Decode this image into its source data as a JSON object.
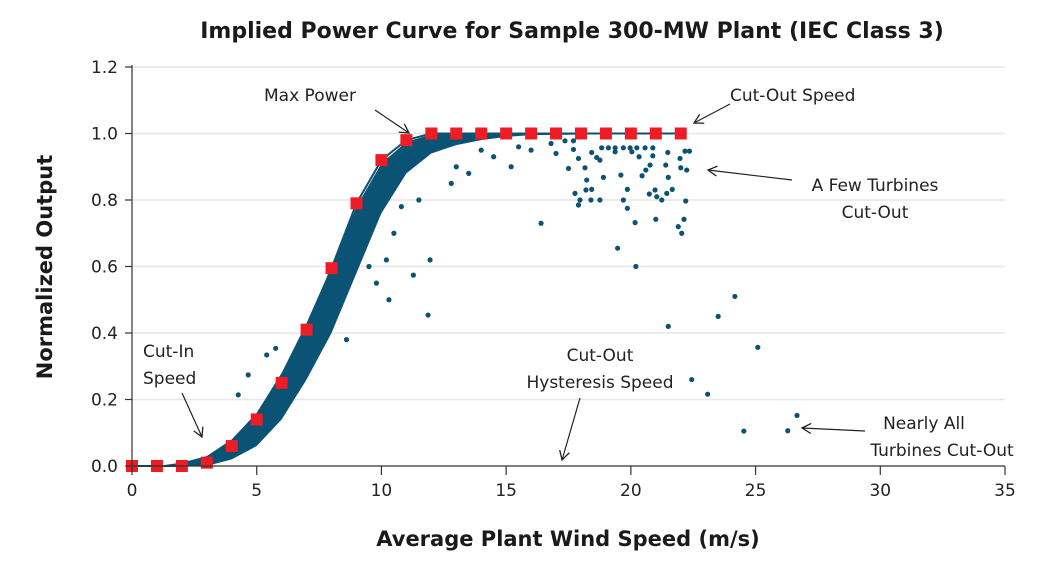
{
  "chart_data": {
    "type": "scatter",
    "title": "Implied Power Curve for Sample 300-MW Plant (IEC Class 3)",
    "xlabel": "Average Plant Wind Speed (m/s)",
    "ylabel": "Normalized Output",
    "xlim": [
      0,
      35
    ],
    "ylim": [
      0,
      1.2
    ],
    "xticks": [
      "0",
      "5",
      "10",
      "15",
      "20",
      "25",
      "30",
      "35"
    ],
    "yticks": [
      "0.0",
      "0.2",
      "0.4",
      "0.6",
      "0.8",
      "1.0",
      "1.2"
    ],
    "grid": "horizontal",
    "colors": {
      "scatter": "#0b5374",
      "power_curve": "#ee1c25",
      "grid": "#e6e6e6"
    },
    "power_curve_points": {
      "x": [
        0,
        1,
        2,
        3,
        4,
        5,
        6,
        7,
        8,
        9,
        10,
        11,
        12,
        13,
        14,
        15,
        16,
        17,
        18,
        19,
        20,
        21,
        22
      ],
      "y": [
        0,
        0,
        0,
        0.01,
        0.06,
        0.14,
        0.25,
        0.41,
        0.595,
        0.79,
        0.92,
        0.98,
        1,
        1,
        1,
        1,
        1,
        1,
        1,
        1,
        1,
        1,
        1
      ]
    },
    "dense_band": {
      "upper": {
        "x": [
          0,
          1,
          2,
          3,
          4,
          5,
          6,
          7,
          8,
          9,
          10,
          11,
          12,
          13,
          22.2
        ],
        "y": [
          0,
          0,
          0.01,
          0.03,
          0.08,
          0.16,
          0.28,
          0.43,
          0.6,
          0.78,
          0.91,
          0.975,
          0.997,
          1,
          1
        ]
      },
      "lower": {
        "x": [
          0,
          2,
          3,
          4,
          5,
          6,
          7,
          8,
          9,
          10,
          11,
          12,
          13,
          14,
          15,
          16
        ],
        "y": [
          0,
          0,
          0,
          0.02,
          0.06,
          0.14,
          0.26,
          0.4,
          0.58,
          0.76,
          0.88,
          0.94,
          0.965,
          0.98,
          0.99,
          0.995
        ]
      }
    },
    "scatter_points": [
      [
        4.26,
        0.214
      ],
      [
        4.66,
        0.274
      ],
      [
        5.4,
        0.334
      ],
      [
        5.76,
        0.354
      ],
      [
        8.6,
        0.38
      ],
      [
        10.3,
        0.5
      ],
      [
        11.28,
        0.574
      ],
      [
        11.95,
        0.62
      ],
      [
        11.87,
        0.454
      ],
      [
        9.5,
        0.6
      ],
      [
        9.8,
        0.55
      ],
      [
        10.2,
        0.62
      ],
      [
        10.5,
        0.7
      ],
      [
        10.8,
        0.78
      ],
      [
        11.5,
        0.8
      ],
      [
        12.8,
        0.85
      ],
      [
        13,
        0.9
      ],
      [
        13.5,
        0.88
      ],
      [
        14,
        0.95
      ],
      [
        14.5,
        0.93
      ],
      [
        15.2,
        0.9
      ],
      [
        15.5,
        0.96
      ],
      [
        16,
        0.95
      ],
      [
        16.4,
        0.73
      ],
      [
        16.8,
        0.97
      ],
      [
        17,
        0.94
      ],
      [
        17.36,
        0.978
      ],
      [
        17.7,
        0.978
      ],
      [
        17.7,
        0.952
      ],
      [
        17.9,
        0.925
      ],
      [
        17.5,
        0.895
      ],
      [
        18.16,
        0.897
      ],
      [
        18.23,
        0.86
      ],
      [
        17.76,
        0.82
      ],
      [
        17.96,
        0.8
      ],
      [
        17.9,
        0.785
      ],
      [
        18.2,
        0.83
      ],
      [
        18.43,
        0.832
      ],
      [
        18.4,
        0.8
      ],
      [
        18.76,
        0.8
      ],
      [
        18.43,
        0.943
      ],
      [
        18.63,
        0.928
      ],
      [
        18.76,
        0.92
      ],
      [
        18.9,
        0.868
      ],
      [
        18.83,
        0.957
      ],
      [
        19.1,
        0.957
      ],
      [
        19.37,
        0.957
      ],
      [
        19.7,
        0.957
      ],
      [
        19.97,
        0.957
      ],
      [
        20.24,
        0.957
      ],
      [
        20.57,
        0.957
      ],
      [
        20.88,
        0.957
      ],
      [
        19.37,
        0.945
      ],
      [
        20.04,
        0.945
      ],
      [
        20.33,
        0.93
      ],
      [
        20.88,
        0.933
      ],
      [
        19.6,
        0.875
      ],
      [
        20.77,
        0.905
      ],
      [
        20.6,
        0.89
      ],
      [
        20.45,
        0.873
      ],
      [
        19.86,
        0.832
      ],
      [
        19.7,
        0.8
      ],
      [
        19.86,
        0.775
      ],
      [
        20.17,
        0.732
      ],
      [
        20.74,
        0.818
      ],
      [
        20.97,
        0.83
      ],
      [
        21.04,
        0.81
      ],
      [
        21.24,
        0.8
      ],
      [
        21.44,
        0.82
      ],
      [
        21.66,
        0.832
      ],
      [
        21.0,
        0.742
      ],
      [
        21.48,
        0.943
      ],
      [
        21.4,
        0.905
      ],
      [
        21.5,
        0.868
      ],
      [
        21.97,
        0.925
      ],
      [
        22.17,
        0.947
      ],
      [
        22.35,
        0.947
      ],
      [
        22.0,
        0.897
      ],
      [
        22.24,
        0.89
      ],
      [
        22.2,
        0.797
      ],
      [
        22.13,
        0.742
      ],
      [
        21.9,
        0.72
      ],
      [
        22.04,
        0.7
      ],
      [
        19.47,
        0.655
      ],
      [
        20.2,
        0.6
      ],
      [
        21.5,
        0.42
      ],
      [
        23.5,
        0.45
      ],
      [
        24.17,
        0.51
      ],
      [
        25.09,
        0.357
      ],
      [
        22.44,
        0.26
      ],
      [
        23.08,
        0.216
      ],
      [
        24.53,
        0.105
      ],
      [
        26.29,
        0.106
      ],
      [
        26.66,
        0.152
      ]
    ],
    "annotations": {
      "max_power": "Max Power",
      "cut_out_speed": "Cut-Out Speed",
      "few_cut_out_1": "A Few Turbines",
      "few_cut_out_2": "Cut-Out",
      "cut_in_1": "Cut-In",
      "cut_in_2": "Speed",
      "hysteresis_1": "Cut-Out",
      "hysteresis_2": "Hysteresis Speed",
      "nearly_all_1": "Nearly All",
      "nearly_all_2": "Turbines Cut-Out"
    }
  }
}
